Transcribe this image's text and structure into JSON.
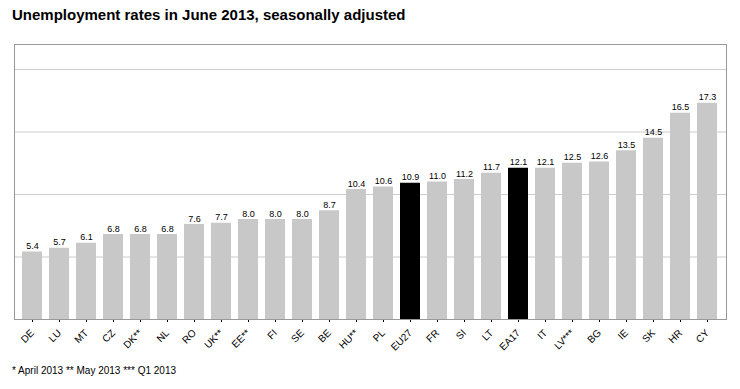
{
  "chart_data": {
    "type": "bar",
    "title": "Unemployment rates in June 2013, seasonally adjusted",
    "footnote": "* April 2013   ** May 2013   *** Q1 2013",
    "categories": [
      "DE",
      "LU",
      "MT",
      "CZ",
      "DK**",
      "NL",
      "RO",
      "UK**",
      "EE**",
      "FI",
      "SE",
      "BE",
      "HU**",
      "PL",
      "EU27",
      "FR",
      "SI",
      "LT",
      "EA17",
      "IT",
      "LV***",
      "BG",
      "IE",
      "SK",
      "HR",
      "CY"
    ],
    "values": [
      5.4,
      5.7,
      6.1,
      6.8,
      6.8,
      6.8,
      7.6,
      7.7,
      8.0,
      8.0,
      8.0,
      8.7,
      10.4,
      10.6,
      10.9,
      11.0,
      11.2,
      11.7,
      12.1,
      12.1,
      12.5,
      12.6,
      13.5,
      14.5,
      16.5,
      17.3
    ],
    "value_labels": [
      "5.4",
      "5.7",
      "6.1",
      "6.8",
      "6.8",
      "6.8",
      "7.6",
      "7.7",
      "8.0",
      "8.0",
      "8.0",
      "8.7",
      "10.4",
      "10.6",
      "10.9",
      "11.0",
      "11.2",
      "11.7",
      "12.1",
      "12.1",
      "12.5",
      "12.6",
      "13.5",
      "14.5",
      "16.5",
      "17.3"
    ],
    "colors": [
      "#c8c8c8",
      "#c8c8c8",
      "#c8c8c8",
      "#c8c8c8",
      "#c8c8c8",
      "#c8c8c8",
      "#c8c8c8",
      "#c8c8c8",
      "#c8c8c8",
      "#c8c8c8",
      "#c8c8c8",
      "#c8c8c8",
      "#c8c8c8",
      "#c8c8c8",
      "#000000",
      "#c8c8c8",
      "#c8c8c8",
      "#c8c8c8",
      "#000000",
      "#c8c8c8",
      "#c8c8c8",
      "#c8c8c8",
      "#c8c8c8",
      "#c8c8c8",
      "#c8c8c8",
      "#c8c8c8"
    ],
    "ylim": [
      0,
      22
    ],
    "yticks": [
      5,
      10,
      15,
      20
    ],
    "grid": true,
    "data_labels": true,
    "tick_labels": "x"
  }
}
